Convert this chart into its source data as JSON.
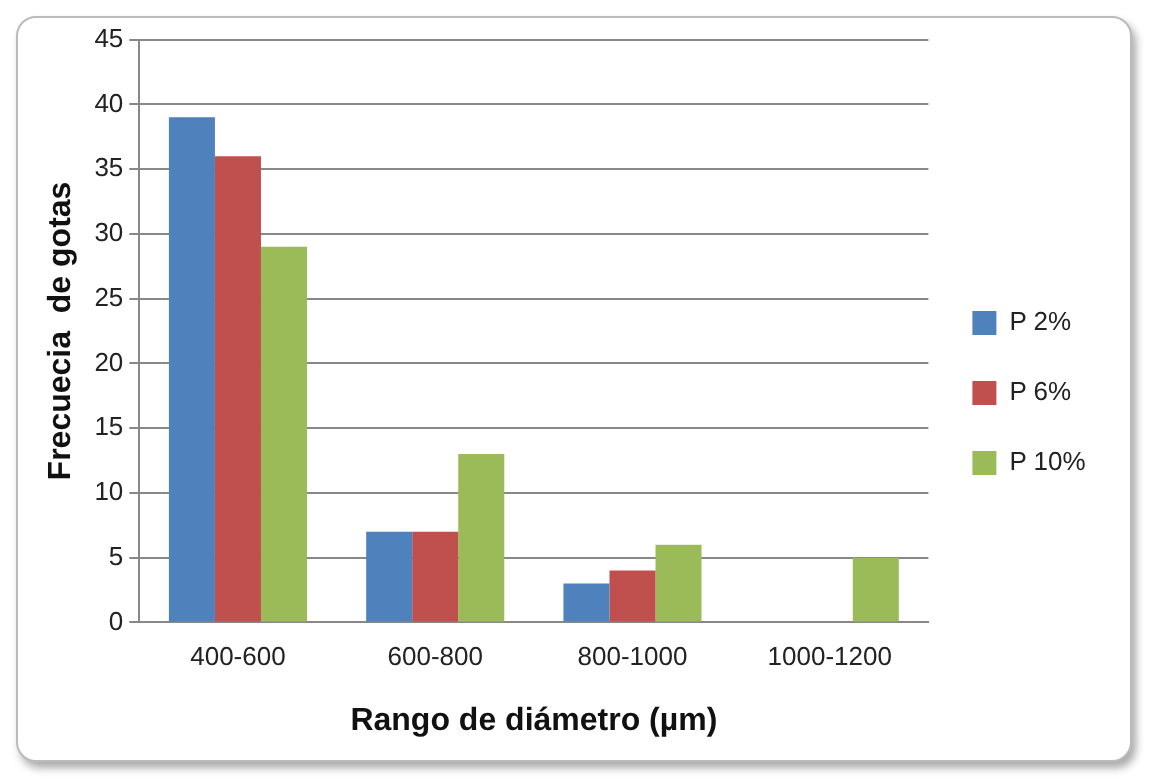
{
  "chart_data": {
    "type": "bar",
    "xlabel": "Rango de diámetro (µm)",
    "ylabel": "Frecuecia  de gotas",
    "categories": [
      "400-600",
      "600-800",
      "800-1000",
      "1000-1200"
    ],
    "series": [
      {
        "name": "P 2%",
        "color": "#4f81bd",
        "values": [
          39,
          7,
          3,
          0
        ]
      },
      {
        "name": "P 6%",
        "color": "#c0504d",
        "values": [
          36,
          7,
          4,
          0
        ]
      },
      {
        "name": "P 10%",
        "color": "#9bbb59",
        "values": [
          29,
          13,
          6,
          5
        ]
      }
    ],
    "ylim": [
      0,
      45
    ],
    "yticks": [
      0,
      5,
      10,
      15,
      20,
      25,
      30,
      35,
      40,
      45
    ],
    "grid": "y",
    "legend": "right"
  }
}
